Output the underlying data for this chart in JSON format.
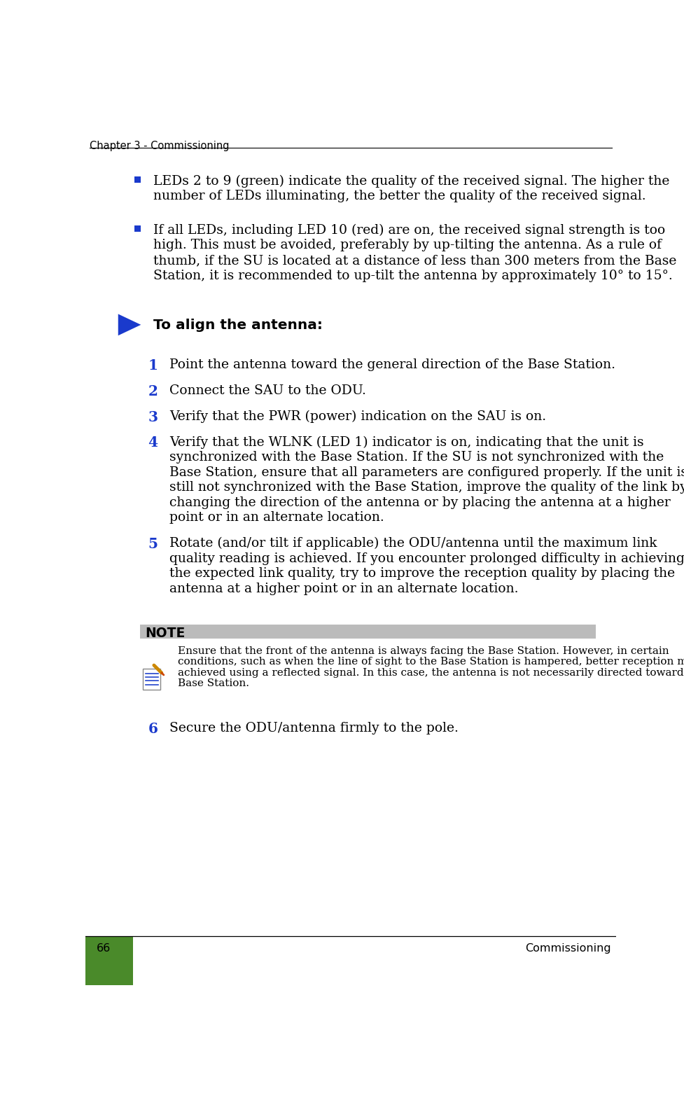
{
  "header_text": "Chapter 3 - Commissioning",
  "footer_left_num": "66",
  "footer_right_text": "Commissioning",
  "footer_green_color": "#4a8a2a",
  "header_line_color": "#000000",
  "bullet_color": "#1a3acc",
  "step_num_color": "#1a3acc",
  "bullet1_lines": [
    "LEDs 2 to 9 (green) indicate the quality of the received signal. The higher the",
    "number of LEDs illuminating, the better the quality of the received signal."
  ],
  "bullet2_lines": [
    "If all LEDs, including LED 10 (red) are on, the received signal strength is too",
    "high. This must be avoided, preferably by up-tilting the antenna. As a rule of",
    "thumb, if the SU is located at a distance of less than 300 meters from the Base",
    "Station, it is recommended to up-tilt the antenna by approximately 10° to 15°."
  ],
  "arrow_color_blue": "#1a3acc",
  "arrow_label": "To align the antenna:",
  "steps": [
    {
      "num": "1",
      "text_lines": [
        "Point the antenna toward the general direction of the Base Station."
      ]
    },
    {
      "num": "2",
      "text_lines": [
        "Connect the SAU to the ODU."
      ]
    },
    {
      "num": "3",
      "text_lines": [
        "Verify that the PWR (power) indication on the SAU is on."
      ]
    },
    {
      "num": "4",
      "text_lines": [
        "Verify that the WLNK (LED 1) indicator is on, indicating that the unit is",
        "synchronized with the Base Station. If the SU is not synchronized with the",
        "Base Station, ensure that all parameters are configured properly. If the unit is",
        "still not synchronized with the Base Station, improve the quality of the link by",
        "changing the direction of the antenna or by placing the antenna at a higher",
        "point or in an alternate location."
      ]
    },
    {
      "num": "5",
      "text_lines": [
        "Rotate (and/or tilt if applicable) the ODU/antenna until the maximum link",
        "quality reading is achieved. If you encounter prolonged difficulty in achieving",
        "the expected link quality, try to improve the reception quality by placing the",
        "antenna at a higher point or in an alternate location."
      ]
    }
  ],
  "note_header": "NOTE",
  "note_hdr_bg_color": "#bbbbbb",
  "note_text_lines": [
    "Ensure that the front of the antenna is always facing the Base Station. However, in certain",
    "conditions, such as when the line of sight to the Base Station is hampered, better reception may be",
    "achieved using a reflected signal. In this case, the antenna is not necessarily directed toward the",
    "Base Station."
  ],
  "step6": {
    "num": "6",
    "text": "Secure the ODU/antenna firmly to the pole."
  },
  "bg_color": "#ffffff",
  "text_color": "#000000",
  "main_font_size": 13.5,
  "header_font_size": 10.5,
  "note_font_size": 11.0,
  "footer_font_size": 11.5
}
